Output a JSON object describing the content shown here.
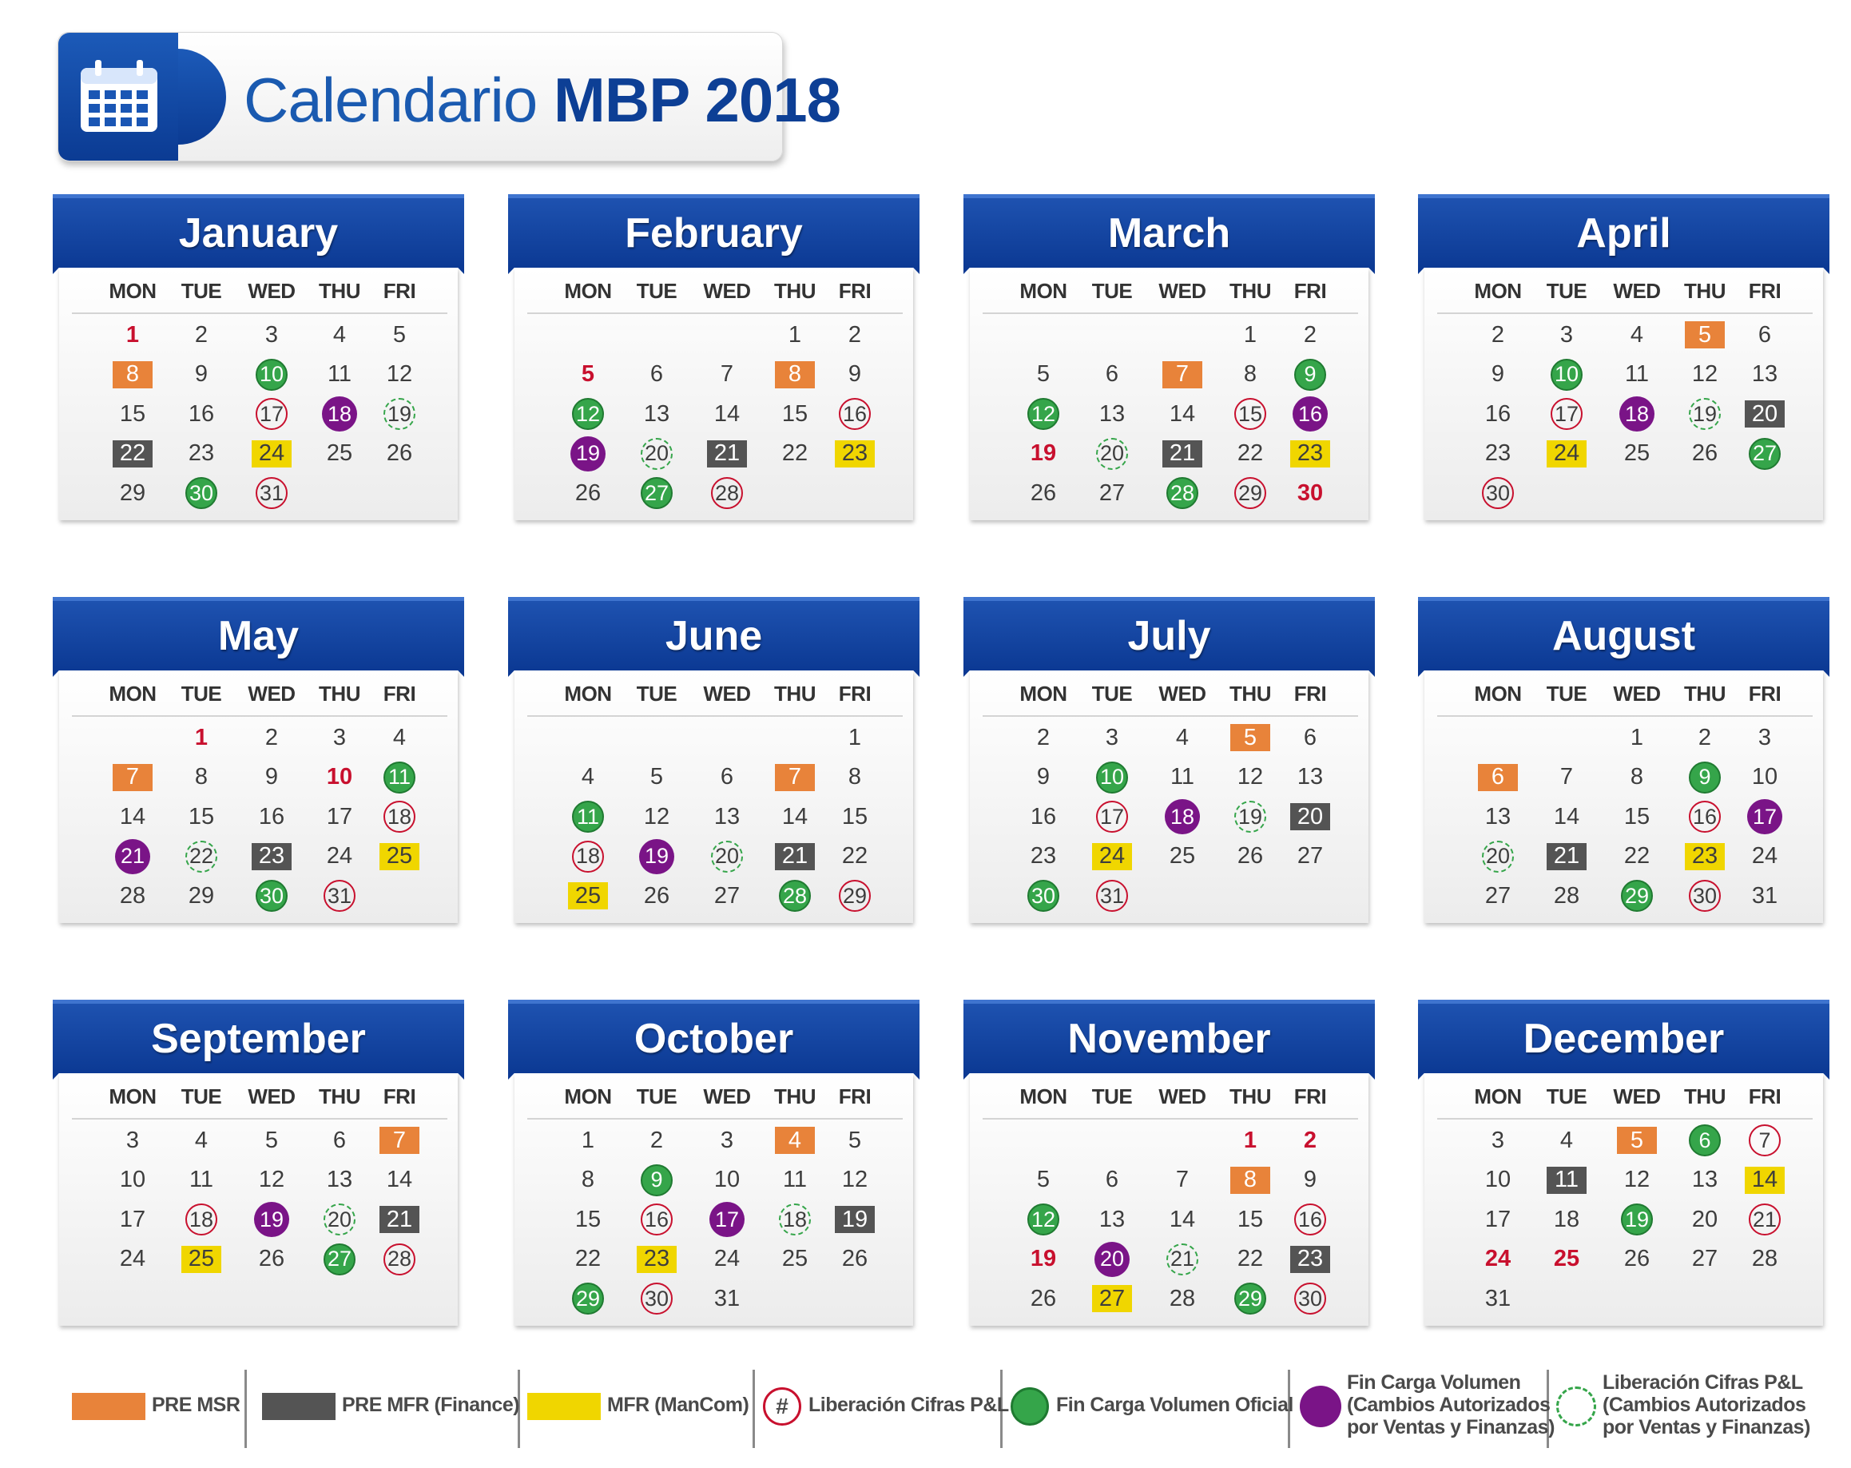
{
  "title": {
    "light": "Calendario ",
    "bold": "MBP 2018"
  },
  "weekdays": [
    "MON",
    "TUE",
    "WED",
    "THU",
    "FRI"
  ],
  "colors": {
    "header_blue": "#0a3791",
    "pre_msr": "#e8833a",
    "pre_mfr": "#545454",
    "mfr": "#f0d600",
    "liberacion_pl": "#c8102e",
    "fin_carga_oficial": "#35a54a",
    "fin_carga_autorizado": "#7a1487",
    "holiday_text": "#c8102e"
  },
  "months": [
    {
      "name": "January",
      "weeks": [
        [
          {
            "d": 1,
            "m": "holiday"
          },
          {
            "d": 2
          },
          {
            "d": 3
          },
          {
            "d": 4
          },
          {
            "d": 5
          }
        ],
        [
          {
            "d": 8,
            "m": "pre_msr"
          },
          {
            "d": 9
          },
          {
            "d": 10,
            "m": "fin_oficial"
          },
          {
            "d": 11
          },
          {
            "d": 12
          }
        ],
        [
          {
            "d": 15
          },
          {
            "d": 16
          },
          {
            "d": 17,
            "m": "lib_pl"
          },
          {
            "d": 18,
            "m": "fin_autorizado"
          },
          {
            "d": 19,
            "m": "lib_autorizado"
          }
        ],
        [
          {
            "d": 22,
            "m": "pre_mfr"
          },
          {
            "d": 23
          },
          {
            "d": 24,
            "m": "mfr"
          },
          {
            "d": 25
          },
          {
            "d": 26
          }
        ],
        [
          {
            "d": 29
          },
          {
            "d": 30,
            "m": "fin_oficial"
          },
          {
            "d": 31,
            "m": "lib_pl"
          },
          null,
          null
        ]
      ]
    },
    {
      "name": "February",
      "weeks": [
        [
          null,
          null,
          null,
          {
            "d": 1
          },
          {
            "d": 2
          }
        ],
        [
          {
            "d": 5,
            "m": "holiday"
          },
          {
            "d": 6
          },
          {
            "d": 7
          },
          {
            "d": 8,
            "m": "pre_msr"
          },
          {
            "d": 9
          }
        ],
        [
          {
            "d": 12,
            "m": "fin_oficial"
          },
          {
            "d": 13
          },
          {
            "d": 14
          },
          {
            "d": 15
          },
          {
            "d": 16,
            "m": "lib_pl"
          }
        ],
        [
          {
            "d": 19,
            "m": "fin_autorizado"
          },
          {
            "d": 20,
            "m": "lib_autorizado"
          },
          {
            "d": 21,
            "m": "pre_mfr"
          },
          {
            "d": 22
          },
          {
            "d": 23,
            "m": "mfr"
          }
        ],
        [
          {
            "d": 26
          },
          {
            "d": 27,
            "m": "fin_oficial"
          },
          {
            "d": 28,
            "m": "lib_pl"
          },
          null,
          null
        ]
      ]
    },
    {
      "name": "March",
      "weeks": [
        [
          null,
          null,
          null,
          {
            "d": 1
          },
          {
            "d": 2
          }
        ],
        [
          {
            "d": 5
          },
          {
            "d": 6
          },
          {
            "d": 7,
            "m": "pre_msr"
          },
          {
            "d": 8
          },
          {
            "d": 9,
            "m": "fin_oficial"
          }
        ],
        [
          {
            "d": 12,
            "m": "fin_oficial"
          },
          {
            "d": 13
          },
          {
            "d": 14
          },
          {
            "d": 15,
            "m": "lib_pl"
          },
          {
            "d": 16,
            "m": "fin_autorizado"
          }
        ],
        [
          {
            "d": 19,
            "m": "holiday"
          },
          {
            "d": 20,
            "m": "lib_autorizado"
          },
          {
            "d": 21,
            "m": "pre_mfr"
          },
          {
            "d": 22
          },
          {
            "d": 23,
            "m": "mfr"
          }
        ],
        [
          {
            "d": 26
          },
          {
            "d": 27
          },
          {
            "d": 28,
            "m": "fin_oficial"
          },
          {
            "d": 29,
            "m": "lib_pl"
          },
          {
            "d": 30,
            "m": "holiday"
          }
        ]
      ]
    },
    {
      "name": "April",
      "weeks": [
        [
          {
            "d": 2
          },
          {
            "d": 3
          },
          {
            "d": 4
          },
          {
            "d": 5,
            "m": "pre_msr"
          },
          {
            "d": 6
          }
        ],
        [
          {
            "d": 9
          },
          {
            "d": 10,
            "m": "fin_oficial"
          },
          {
            "d": 11
          },
          {
            "d": 12
          },
          {
            "d": 13
          }
        ],
        [
          {
            "d": 16
          },
          {
            "d": 17,
            "m": "lib_pl"
          },
          {
            "d": 18,
            "m": "fin_autorizado"
          },
          {
            "d": 19,
            "m": "lib_autorizado"
          },
          {
            "d": 20,
            "m": "pre_mfr"
          }
        ],
        [
          {
            "d": 23
          },
          {
            "d": 24,
            "m": "mfr"
          },
          {
            "d": 25
          },
          {
            "d": 26
          },
          {
            "d": 27,
            "m": "fin_oficial"
          }
        ],
        [
          {
            "d": 30,
            "m": "lib_pl"
          },
          null,
          null,
          null,
          null
        ]
      ]
    },
    {
      "name": "May",
      "weeks": [
        [
          null,
          {
            "d": 1,
            "m": "holiday"
          },
          {
            "d": 2
          },
          {
            "d": 3
          },
          {
            "d": 4
          }
        ],
        [
          {
            "d": 7,
            "m": "pre_msr"
          },
          {
            "d": 8
          },
          {
            "d": 9
          },
          {
            "d": 10,
            "m": "holiday"
          },
          {
            "d": 11,
            "m": "fin_oficial"
          }
        ],
        [
          {
            "d": 14
          },
          {
            "d": 15
          },
          {
            "d": 16
          },
          {
            "d": 17
          },
          {
            "d": 18,
            "m": "lib_pl"
          }
        ],
        [
          {
            "d": 21,
            "m": "fin_autorizado"
          },
          {
            "d": 22,
            "m": "lib_autorizado"
          },
          {
            "d": 23,
            "m": "pre_mfr"
          },
          {
            "d": 24
          },
          {
            "d": 25,
            "m": "mfr"
          }
        ],
        [
          {
            "d": 28
          },
          {
            "d": 29
          },
          {
            "d": 30,
            "m": "fin_oficial"
          },
          {
            "d": 31,
            "m": "lib_pl"
          },
          null
        ]
      ]
    },
    {
      "name": "June",
      "weeks": [
        [
          null,
          null,
          null,
          null,
          {
            "d": 1
          }
        ],
        [
          {
            "d": 4
          },
          {
            "d": 5
          },
          {
            "d": 6
          },
          {
            "d": 7,
            "m": "pre_msr"
          },
          {
            "d": 8
          }
        ],
        [
          {
            "d": 11,
            "m": "fin_oficial"
          },
          {
            "d": 12
          },
          {
            "d": 13
          },
          {
            "d": 14
          },
          {
            "d": 15
          }
        ],
        [
          {
            "d": 18,
            "m": "lib_pl"
          },
          {
            "d": 19,
            "m": "fin_autorizado"
          },
          {
            "d": 20,
            "m": "lib_autorizado"
          },
          {
            "d": 21,
            "m": "pre_mfr"
          },
          {
            "d": 22
          }
        ],
        [
          {
            "d": 25,
            "m": "mfr"
          },
          {
            "d": 26
          },
          {
            "d": 27
          },
          {
            "d": 28,
            "m": "fin_oficial"
          },
          {
            "d": 29,
            "m": "lib_pl"
          }
        ]
      ]
    },
    {
      "name": "July",
      "weeks": [
        [
          {
            "d": 2
          },
          {
            "d": 3
          },
          {
            "d": 4
          },
          {
            "d": 5,
            "m": "pre_msr"
          },
          {
            "d": 6
          }
        ],
        [
          {
            "d": 9
          },
          {
            "d": 10,
            "m": "fin_oficial"
          },
          {
            "d": 11
          },
          {
            "d": 12
          },
          {
            "d": 13
          }
        ],
        [
          {
            "d": 16
          },
          {
            "d": 17,
            "m": "lib_pl"
          },
          {
            "d": 18,
            "m": "fin_autorizado"
          },
          {
            "d": 19,
            "m": "lib_autorizado"
          },
          {
            "d": 20,
            "m": "pre_mfr"
          }
        ],
        [
          {
            "d": 23
          },
          {
            "d": 24,
            "m": "mfr"
          },
          {
            "d": 25
          },
          {
            "d": 26
          },
          {
            "d": 27
          }
        ],
        [
          {
            "d": 30,
            "m": "fin_oficial"
          },
          {
            "d": 31,
            "m": "lib_pl"
          },
          null,
          null,
          null
        ]
      ]
    },
    {
      "name": "August",
      "weeks": [
        [
          null,
          null,
          {
            "d": 1
          },
          {
            "d": 2
          },
          {
            "d": 3
          }
        ],
        [
          {
            "d": 6,
            "m": "pre_msr"
          },
          {
            "d": 7
          },
          {
            "d": 8
          },
          {
            "d": 9,
            "m": "fin_oficial"
          },
          {
            "d": 10
          }
        ],
        [
          {
            "d": 13
          },
          {
            "d": 14
          },
          {
            "d": 15
          },
          {
            "d": 16,
            "m": "lib_pl"
          },
          {
            "d": 17,
            "m": "fin_autorizado"
          }
        ],
        [
          {
            "d": 20,
            "m": "lib_autorizado"
          },
          {
            "d": 21,
            "m": "pre_mfr"
          },
          {
            "d": 22
          },
          {
            "d": 23,
            "m": "mfr"
          },
          {
            "d": 24
          }
        ],
        [
          {
            "d": 27
          },
          {
            "d": 28
          },
          {
            "d": 29,
            "m": "fin_oficial"
          },
          {
            "d": 30,
            "m": "lib_pl"
          },
          {
            "d": 31
          }
        ]
      ]
    },
    {
      "name": "September",
      "weeks": [
        [
          {
            "d": 3
          },
          {
            "d": 4
          },
          {
            "d": 5
          },
          {
            "d": 6
          },
          {
            "d": 7,
            "m": "pre_msr"
          }
        ],
        [
          {
            "d": 10
          },
          {
            "d": 11
          },
          {
            "d": 12
          },
          {
            "d": 13
          },
          {
            "d": 14
          }
        ],
        [
          {
            "d": 17
          },
          {
            "d": 18,
            "m": "lib_pl"
          },
          {
            "d": 19,
            "m": "fin_autorizado"
          },
          {
            "d": 20,
            "m": "lib_autorizado"
          },
          {
            "d": 21,
            "m": "pre_mfr"
          }
        ],
        [
          {
            "d": 24
          },
          {
            "d": 25,
            "m": "mfr"
          },
          {
            "d": 26
          },
          {
            "d": 27,
            "m": "fin_oficial"
          },
          {
            "d": 28,
            "m": "lib_pl"
          }
        ]
      ]
    },
    {
      "name": "October",
      "weeks": [
        [
          {
            "d": 1
          },
          {
            "d": 2
          },
          {
            "d": 3
          },
          {
            "d": 4,
            "m": "pre_msr"
          },
          {
            "d": 5
          }
        ],
        [
          {
            "d": 8
          },
          {
            "d": 9,
            "m": "fin_oficial"
          },
          {
            "d": 10
          },
          {
            "d": 11
          },
          {
            "d": 12
          }
        ],
        [
          {
            "d": 15
          },
          {
            "d": 16,
            "m": "lib_pl"
          },
          {
            "d": 17,
            "m": "fin_autorizado"
          },
          {
            "d": 18,
            "m": "lib_autorizado"
          },
          {
            "d": 19,
            "m": "pre_mfr"
          }
        ],
        [
          {
            "d": 22
          },
          {
            "d": 23,
            "m": "mfr"
          },
          {
            "d": 24
          },
          {
            "d": 25
          },
          {
            "d": 26
          }
        ],
        [
          {
            "d": 29,
            "m": "fin_oficial"
          },
          {
            "d": 30,
            "m": "lib_pl"
          },
          {
            "d": 31
          },
          null,
          null
        ]
      ]
    },
    {
      "name": "November",
      "weeks": [
        [
          null,
          null,
          null,
          {
            "d": 1,
            "m": "holiday"
          },
          {
            "d": 2,
            "m": "holiday"
          }
        ],
        [
          {
            "d": 5
          },
          {
            "d": 6
          },
          {
            "d": 7
          },
          {
            "d": 8,
            "m": "pre_msr"
          },
          {
            "d": 9
          }
        ],
        [
          {
            "d": 12,
            "m": "fin_oficial"
          },
          {
            "d": 13
          },
          {
            "d": 14
          },
          {
            "d": 15
          },
          {
            "d": 16,
            "m": "lib_pl"
          }
        ],
        [
          {
            "d": 19,
            "m": "holiday"
          },
          {
            "d": 20,
            "m": "fin_autorizado"
          },
          {
            "d": 21,
            "m": "lib_autorizado"
          },
          {
            "d": 22
          },
          {
            "d": 23,
            "m": "pre_mfr"
          }
        ],
        [
          {
            "d": 26
          },
          {
            "d": 27,
            "m": "mfr"
          },
          {
            "d": 28
          },
          {
            "d": 29,
            "m": "fin_oficial"
          },
          {
            "d": 30,
            "m": "lib_pl"
          }
        ]
      ]
    },
    {
      "name": "December",
      "weeks": [
        [
          {
            "d": 3
          },
          {
            "d": 4
          },
          {
            "d": 5,
            "m": "pre_msr"
          },
          {
            "d": 6,
            "m": "fin_oficial"
          },
          {
            "d": 7,
            "m": "lib_pl"
          }
        ],
        [
          {
            "d": 10
          },
          {
            "d": 11,
            "m": "pre_mfr"
          },
          {
            "d": 12
          },
          {
            "d": 13
          },
          {
            "d": 14,
            "m": "mfr"
          }
        ],
        [
          {
            "d": 17
          },
          {
            "d": 18
          },
          {
            "d": 19,
            "m": "fin_oficial"
          },
          {
            "d": 20
          },
          {
            "d": 21,
            "m": "lib_pl"
          }
        ],
        [
          {
            "d": 24,
            "m": "holiday"
          },
          {
            "d": 25,
            "m": "holiday"
          },
          {
            "d": 26
          },
          {
            "d": 27
          },
          {
            "d": 28
          }
        ],
        [
          {
            "d": 31
          },
          null,
          null,
          null,
          null
        ]
      ]
    }
  ],
  "legend": [
    {
      "key": "pre_msr",
      "label": "PRE MSR"
    },
    {
      "key": "pre_mfr",
      "label": "PRE MFR (Finance)"
    },
    {
      "key": "mfr",
      "label": "MFR (ManCom)"
    },
    {
      "key": "lib_pl",
      "symbol": "#",
      "label": "Liberación Cifras P&L"
    },
    {
      "key": "fin_oficial",
      "label": "Fin Carga Volumen Oficial"
    },
    {
      "key": "fin_autorizado",
      "label": "Fin Carga Volumen\n(Cambios Autorizados\npor Ventas y Finanzas)"
    },
    {
      "key": "lib_autorizado",
      "label": "Liberación Cifras P&L\n(Cambios Autorizados\npor Ventas y Finanzas)"
    }
  ]
}
